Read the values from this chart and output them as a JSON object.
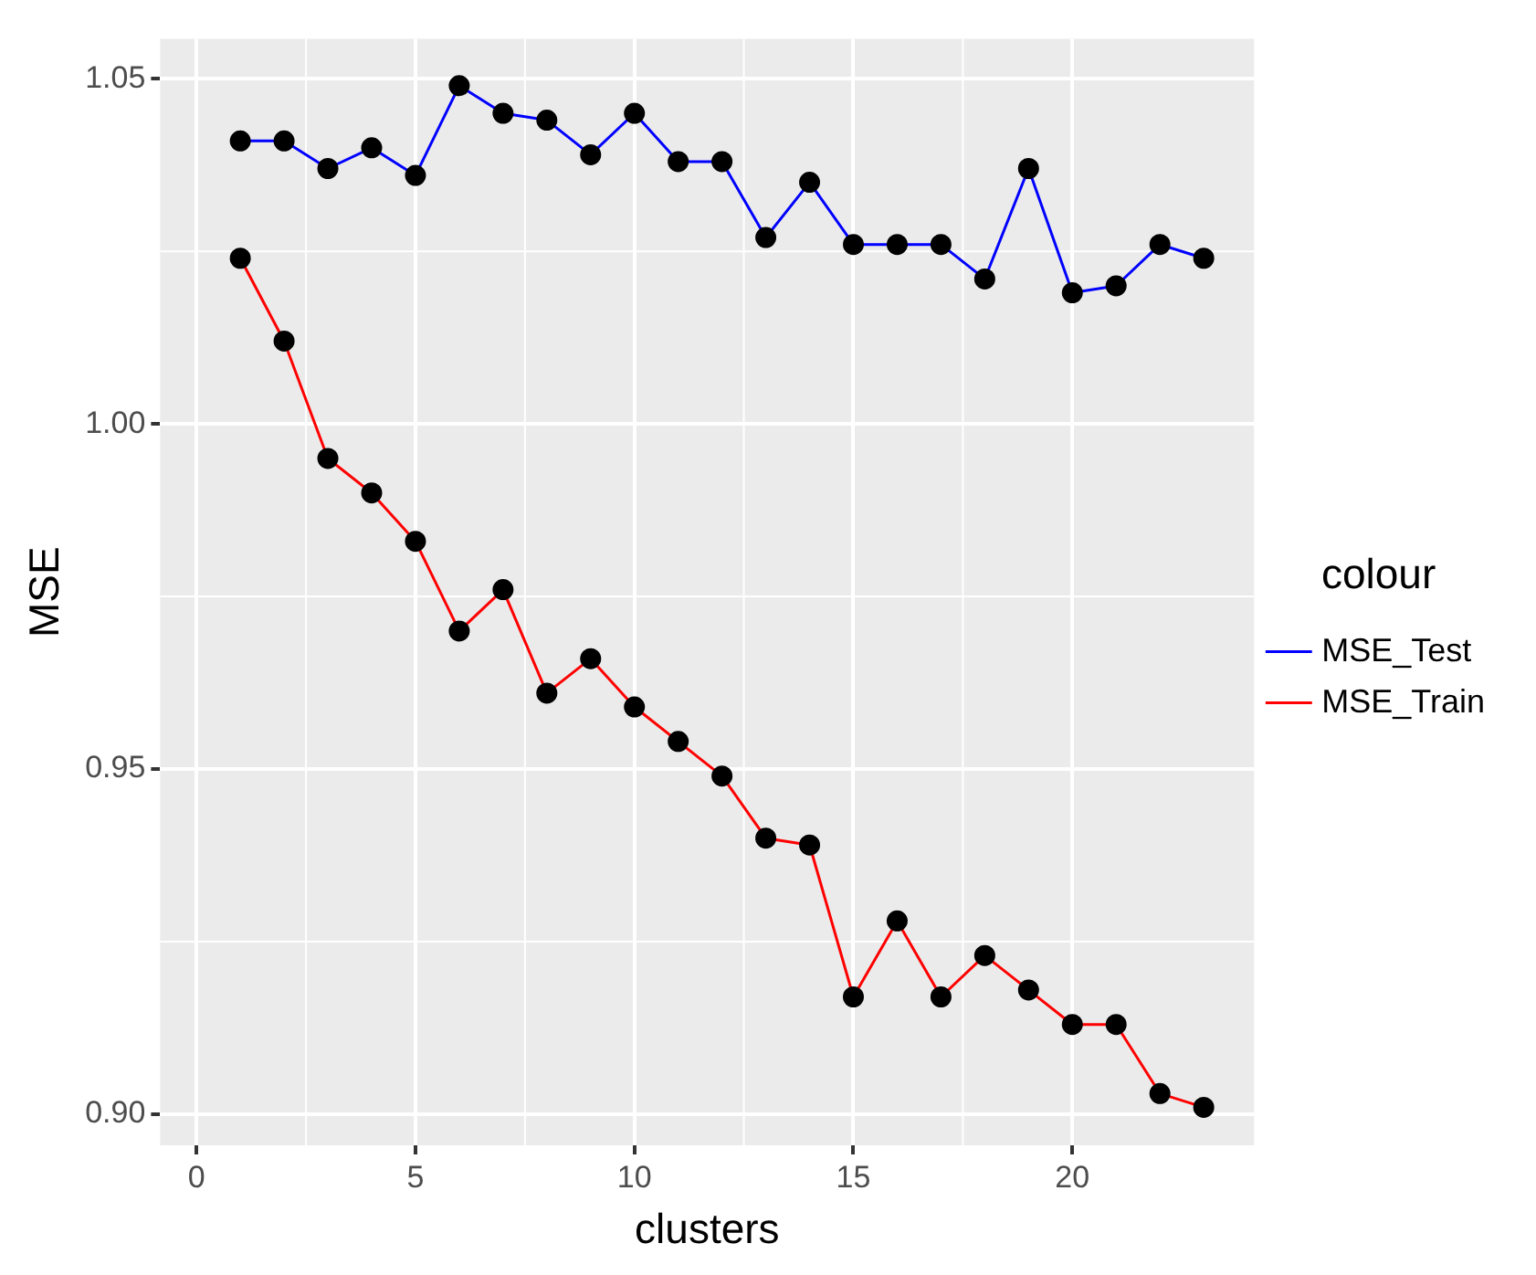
{
  "chart_data": {
    "type": "line",
    "xlabel": "clusters",
    "ylabel": "MSE",
    "legend_title": "colour",
    "x": [
      1,
      2,
      3,
      4,
      5,
      6,
      7,
      8,
      9,
      10,
      11,
      12,
      13,
      14,
      15,
      16,
      17,
      18,
      19,
      20,
      21,
      22,
      23
    ],
    "series": [
      {
        "name": "MSE_Test",
        "color": "#0000ff",
        "values": [
          1.041,
          1.041,
          1.037,
          1.04,
          1.036,
          1.049,
          1.045,
          1.044,
          1.039,
          1.045,
          1.038,
          1.038,
          1.027,
          1.035,
          1.026,
          1.026,
          1.026,
          1.021,
          1.037,
          1.019,
          1.02,
          1.026,
          1.024
        ]
      },
      {
        "name": "MSE_Train",
        "color": "#ff0000",
        "values": [
          1.024,
          1.012,
          0.995,
          0.99,
          0.983,
          0.97,
          0.976,
          0.961,
          0.966,
          0.959,
          0.954,
          0.949,
          0.94,
          0.939,
          0.917,
          0.928,
          0.917,
          0.923,
          0.918,
          0.913,
          0.913,
          0.903,
          0.901
        ]
      }
    ],
    "xlim": [
      -0.83,
      24.15
    ],
    "xticks": [
      0,
      5,
      10,
      15,
      20
    ],
    "ylim": [
      0.8955,
      1.0558
    ],
    "yticks": [
      {
        "value": 0.9,
        "label": "0.90"
      },
      {
        "value": 0.95,
        "label": "0.95"
      },
      {
        "value": 1.0,
        "label": "1.00"
      },
      {
        "value": 1.05,
        "label": "1.05"
      }
    ],
    "grid": true,
    "legend": "right",
    "marker": "circle",
    "line_style": "solid"
  }
}
